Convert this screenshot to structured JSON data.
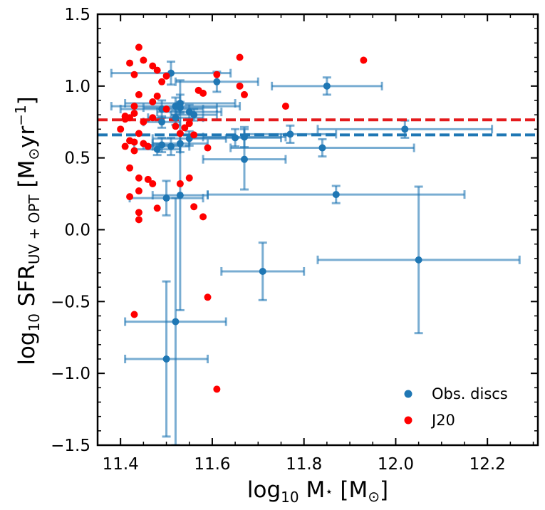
{
  "chart_data": {
    "type": "scatter",
    "xlabel": "log10 M⋆ [M⊙]",
    "ylabel": "log10 SFR UV+OPT [M⊙yr−1]",
    "xlabel_parts": {
      "prefix": "log",
      "sub": "10",
      "main": " M",
      "star": "⋆",
      "bracket_open": " [M",
      "sun": "⊙",
      "bracket_close": "]"
    },
    "ylabel_parts": {
      "prefix": "log",
      "sub": "10",
      "main": " SFR",
      "sfr_sub": "UV + OPT",
      "bracket_open": " [M",
      "sun": "⊙",
      "unit": "yr",
      "sup": "−1",
      "bracket_close": "]"
    },
    "xlim": [
      11.35,
      12.31
    ],
    "ylim": [
      -1.5,
      1.5
    ],
    "xticks": [
      "11.4",
      "11.6",
      "11.8",
      "12.0",
      "12.2"
    ],
    "xtick_values": [
      11.4,
      11.6,
      11.8,
      12.0,
      12.2
    ],
    "yticks": [
      "−1.5",
      "−1.0",
      "−0.5",
      "0.0",
      "0.5",
      "1.0",
      "1.5"
    ],
    "ytick_values": [
      -1.5,
      -1.0,
      -0.5,
      0.0,
      0.5,
      1.0,
      1.5
    ],
    "legend": {
      "position": "lower-right",
      "entries": [
        "Obs. discs",
        "J20"
      ]
    },
    "hlines": [
      {
        "name": "J20 median",
        "y": 0.765,
        "color": "#e41a1c"
      },
      {
        "name": "Obs. discs median",
        "y": 0.66,
        "color": "#1f77b4"
      }
    ],
    "series": [
      {
        "name": "Obs. discs",
        "color": "#1f77b4",
        "points": [
          {
            "x": 11.51,
            "y": 1.09,
            "xerr": 0.13,
            "yerr": 0.08
          },
          {
            "x": 11.61,
            "y": 1.03,
            "xerr": 0.09,
            "yerr": 0.07
          },
          {
            "x": 11.85,
            "y": 1.0,
            "xerr": 0.12,
            "yerr": 0.06
          },
          {
            "x": 11.53,
            "y": 0.88,
            "xerr": 0.12,
            "yerr": 0.06
          },
          {
            "x": 11.52,
            "y": 0.86,
            "xerr": 0.14,
            "yerr": 0.06
          },
          {
            "x": 11.53,
            "y": 0.85,
            "xerr": 0.08,
            "yerr": 0.04
          },
          {
            "x": 11.49,
            "y": 0.84,
            "xerr": 0.09,
            "yerr": 0.06
          },
          {
            "x": 11.55,
            "y": 0.82,
            "xerr": 0.07,
            "yerr": 0.05
          },
          {
            "x": 11.56,
            "y": 0.8,
            "xerr": 0.05,
            "yerr": 0.04
          },
          {
            "x": 11.52,
            "y": 0.78,
            "xerr": 0.06,
            "yerr": 0.05
          },
          {
            "x": 11.49,
            "y": 0.75,
            "xerr": 0.04,
            "yerr": 0.04
          },
          {
            "x": 12.02,
            "y": 0.7,
            "xerr": 0.19,
            "yerr": 0.06
          },
          {
            "x": 11.77,
            "y": 0.665,
            "xerr": 0.1,
            "yerr": 0.06
          },
          {
            "x": 11.67,
            "y": 0.645,
            "xerr": 0.09,
            "yerr": 0.07
          },
          {
            "x": 11.65,
            "y": 0.64,
            "xerr": 0.1,
            "yerr": 0.06
          },
          {
            "x": 11.55,
            "y": 0.635,
            "xerr": 0.08,
            "yerr": 0.05
          },
          {
            "x": 11.53,
            "y": 0.6,
            "xerr": 0.06,
            "yerr": 0.06
          },
          {
            "x": 11.51,
            "y": 0.58,
            "xerr": 0.04,
            "yerr": 0.06
          },
          {
            "x": 11.49,
            "y": 0.59,
            "xerr": 0.04,
            "yerr": 0.05
          },
          {
            "x": 11.84,
            "y": 0.57,
            "xerr": 0.2,
            "yerr": 0.06
          },
          {
            "x": 11.48,
            "y": 0.56,
            "xerr": 0.05,
            "yerr": 0.04
          },
          {
            "x": 11.67,
            "y": 0.49,
            "xerr": 0.09,
            "yerr": 0.21
          },
          {
            "x": 11.87,
            "y": 0.245,
            "xerr": 0.28,
            "yerr": 0.06
          },
          {
            "x": 11.53,
            "y": 0.24,
            "xerr": 0.06,
            "yerr": 0.8
          },
          {
            "x": 11.5,
            "y": 0.22,
            "xerr": 0.08,
            "yerr": 0.12
          },
          {
            "x": 11.71,
            "y": -0.29,
            "xerr": 0.09,
            "yerr": 0.2
          },
          {
            "x": 12.05,
            "y": -0.21,
            "xerr": 0.22,
            "yerr": 0.51
          },
          {
            "x": 11.52,
            "y": -0.64,
            "xerr": 0.11,
            "yerr": 0.86
          },
          {
            "x": 11.5,
            "y": -0.9,
            "xerr": 0.09,
            "yerr": 0.54
          }
        ]
      },
      {
        "name": "J20",
        "color": "#ff0000",
        "points": [
          {
            "x": 11.44,
            "y": 1.27
          },
          {
            "x": 11.66,
            "y": 1.2
          },
          {
            "x": 11.93,
            "y": 1.18
          },
          {
            "x": 11.45,
            "y": 1.18
          },
          {
            "x": 11.42,
            "y": 1.16
          },
          {
            "x": 11.47,
            "y": 1.14
          },
          {
            "x": 11.48,
            "y": 1.11
          },
          {
            "x": 11.43,
            "y": 1.08
          },
          {
            "x": 11.61,
            "y": 1.08
          },
          {
            "x": 11.5,
            "y": 1.07
          },
          {
            "x": 11.49,
            "y": 1.03
          },
          {
            "x": 11.66,
            "y": 1.0
          },
          {
            "x": 11.57,
            "y": 0.97
          },
          {
            "x": 11.58,
            "y": 0.95
          },
          {
            "x": 11.67,
            "y": 0.94
          },
          {
            "x": 11.44,
            "y": 0.94
          },
          {
            "x": 11.48,
            "y": 0.93
          },
          {
            "x": 11.47,
            "y": 0.89
          },
          {
            "x": 11.43,
            "y": 0.86
          },
          {
            "x": 11.76,
            "y": 0.86
          },
          {
            "x": 11.5,
            "y": 0.84
          },
          {
            "x": 11.43,
            "y": 0.81
          },
          {
            "x": 11.41,
            "y": 0.79
          },
          {
            "x": 11.41,
            "y": 0.77
          },
          {
            "x": 11.42,
            "y": 0.78
          },
          {
            "x": 11.47,
            "y": 0.78
          },
          {
            "x": 11.45,
            "y": 0.75
          },
          {
            "x": 11.55,
            "y": 0.74
          },
          {
            "x": 11.52,
            "y": 0.72
          },
          {
            "x": 11.54,
            "y": 0.71
          },
          {
            "x": 11.4,
            "y": 0.7
          },
          {
            "x": 11.44,
            "y": 0.67
          },
          {
            "x": 11.53,
            "y": 0.67
          },
          {
            "x": 11.56,
            "y": 0.66
          },
          {
            "x": 11.42,
            "y": 0.62
          },
          {
            "x": 11.43,
            "y": 0.61
          },
          {
            "x": 11.45,
            "y": 0.6
          },
          {
            "x": 11.41,
            "y": 0.58
          },
          {
            "x": 11.46,
            "y": 0.58
          },
          {
            "x": 11.43,
            "y": 0.55
          },
          {
            "x": 11.59,
            "y": 0.57
          },
          {
            "x": 11.42,
            "y": 0.43
          },
          {
            "x": 11.44,
            "y": 0.36
          },
          {
            "x": 11.46,
            "y": 0.35
          },
          {
            "x": 11.55,
            "y": 0.36
          },
          {
            "x": 11.47,
            "y": 0.32
          },
          {
            "x": 11.53,
            "y": 0.32
          },
          {
            "x": 11.44,
            "y": 0.27
          },
          {
            "x": 11.42,
            "y": 0.23
          },
          {
            "x": 11.56,
            "y": 0.16
          },
          {
            "x": 11.48,
            "y": 0.15
          },
          {
            "x": 11.44,
            "y": 0.12
          },
          {
            "x": 11.58,
            "y": 0.09
          },
          {
            "x": 11.44,
            "y": 0.07
          },
          {
            "x": 11.59,
            "y": -0.47
          },
          {
            "x": 11.43,
            "y": -0.59
          },
          {
            "x": 11.61,
            "y": -1.11
          }
        ]
      }
    ]
  }
}
